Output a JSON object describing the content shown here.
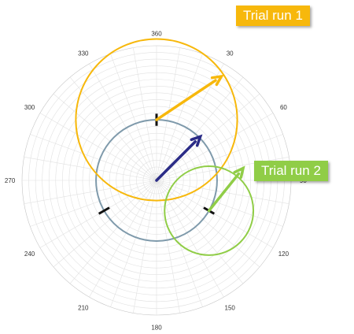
{
  "chart_data": {
    "type": "polar",
    "angle_ticks": [
      "360",
      "30",
      "60",
      "90",
      "120",
      "150",
      "180",
      "210",
      "240",
      "270",
      "300",
      "330"
    ],
    "grid": true,
    "reference_circle": {
      "radius": 0.45,
      "color": "#7f9aab",
      "marks_deg": [
        0,
        120,
        240
      ]
    },
    "main_vector": {
      "angle_deg": 45,
      "magnitude": 0.46,
      "color": "#2b2c87"
    },
    "trials": [
      {
        "label": "Trial run 1",
        "color": "#f7b80c",
        "arrow": {
          "from_angle_deg": 0,
          "from_r": 0.45,
          "to_angle_deg": 32,
          "to_r": 0.91
        },
        "circle": {
          "center_angle_deg": 0,
          "center_r": 0.45,
          "radius": 0.6
        }
      },
      {
        "label": "Trial run 2",
        "color": "#90cd47",
        "arrow": {
          "from_angle_deg": 120,
          "from_r": 0.45,
          "to_angle_deg": 82,
          "to_r": 0.65
        },
        "circle": {
          "center_angle_deg": 120,
          "center_r": 0.45,
          "radius": 0.33
        }
      }
    ]
  }
}
